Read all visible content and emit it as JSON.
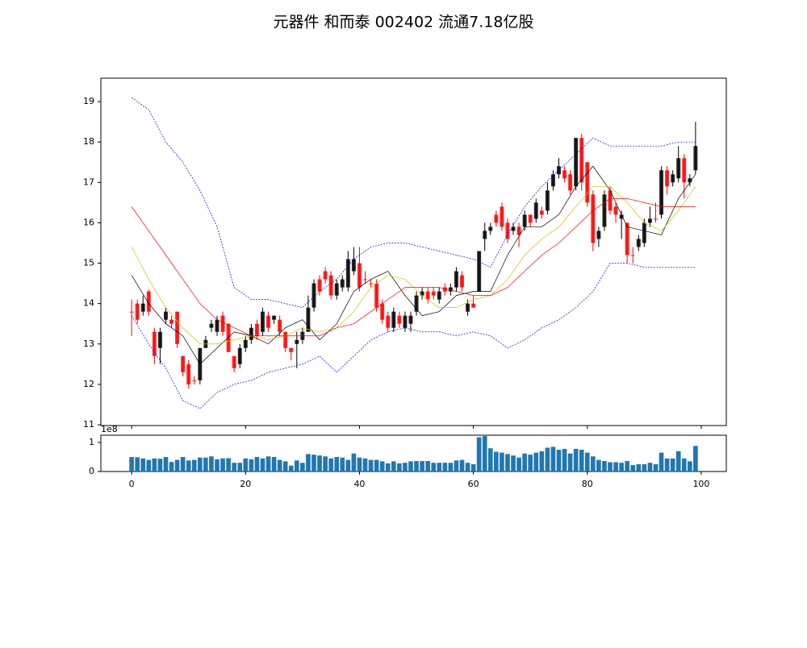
{
  "chart_data": [
    {
      "type": "candlestick",
      "title": "元器件 和而泰 002402 流通7.18亿股",
      "up_color": "#000000",
      "down_color": "#ff0000",
      "xlim": [
        -5.4,
        104.4
      ],
      "xticks": [
        0,
        20,
        40,
        60,
        80,
        100
      ],
      "ylim": [
        10.98,
        19.58
      ],
      "yticks": [
        11,
        12,
        13,
        14,
        15,
        16,
        17,
        18,
        19
      ],
      "open": [
        13.8,
        14.0,
        13.8,
        14.3,
        13.3,
        12.9,
        13.6,
        13.6,
        13.8,
        12.7,
        12.5,
        12.1,
        12.1,
        12.9,
        13.4,
        13.3,
        13.7,
        13.5,
        12.7,
        12.5,
        12.9,
        13.1,
        13.5,
        13.3,
        13.7,
        13.6,
        13.6,
        13.3,
        12.9,
        13.0,
        13.1,
        13.3,
        13.9,
        14.6,
        14.8,
        14.7,
        14.2,
        14.4,
        14.4,
        14.8,
        15.0,
        14.6,
        14.5,
        14.5,
        14.0,
        13.7,
        13.4,
        13.7,
        13.4,
        13.5,
        13.8,
        14.2,
        14.3,
        14.3,
        14.1,
        14.4,
        14.3,
        14.4,
        14.7,
        13.8,
        14.0,
        14.3,
        15.6,
        15.8,
        16.2,
        16.4,
        16.0,
        15.8,
        15.9,
        15.9,
        16.2,
        16.1,
        16.3,
        16.3,
        16.9,
        17.2,
        17.3,
        17.2,
        16.9,
        18.1,
        17.5,
        16.7,
        15.6,
        15.9,
        16.8,
        16.4,
        16.1,
        16.0,
        15.2,
        15.4,
        15.5,
        16.0,
        16.1,
        16.2,
        17.3,
        17.0,
        17.1,
        17.6,
        17.0,
        17.3
      ],
      "high": [
        14.1,
        14.1,
        14.2,
        14.35,
        13.4,
        13.4,
        13.9,
        13.7,
        13.8,
        12.7,
        12.6,
        12.2,
        12.9,
        13.2,
        13.6,
        13.7,
        13.8,
        13.5,
        12.7,
        13.0,
        13.2,
        13.5,
        13.6,
        13.9,
        13.8,
        13.7,
        13.7,
        13.3,
        12.9,
        13.3,
        13.4,
        14.2,
        14.6,
        14.7,
        14.9,
        14.8,
        14.6,
        14.7,
        15.3,
        15.4,
        15.4,
        14.8,
        14.6,
        14.6,
        14.1,
        13.8,
        13.9,
        13.8,
        13.8,
        13.8,
        14.3,
        14.4,
        14.4,
        14.4,
        14.4,
        14.5,
        14.5,
        14.9,
        14.8,
        14.1,
        14.2,
        15.3,
        16.0,
        16.0,
        16.3,
        16.5,
        16.1,
        16.0,
        16.0,
        16.3,
        16.2,
        16.6,
        16.4,
        17.0,
        17.3,
        17.6,
        17.4,
        17.3,
        18.1,
        18.2,
        17.5,
        16.8,
        15.9,
        16.8,
        16.9,
        16.5,
        16.3,
        16.0,
        15.4,
        15.7,
        16.1,
        16.4,
        16.5,
        17.4,
        17.4,
        17.3,
        17.9,
        17.7,
        17.2,
        18.5
      ],
      "low": [
        13.2,
        13.5,
        13.7,
        13.7,
        12.5,
        12.5,
        13.5,
        13.4,
        12.9,
        12.2,
        11.9,
        12.0,
        12.0,
        12.9,
        13.3,
        13.2,
        13.2,
        12.8,
        12.3,
        12.4,
        12.8,
        13.0,
        13.1,
        13.2,
        13.3,
        13.5,
        13.2,
        12.8,
        12.6,
        12.4,
        13.0,
        13.3,
        13.8,
        14.2,
        14.5,
        14.1,
        14.1,
        14.3,
        14.3,
        14.7,
        14.3,
        14.5,
        14.4,
        13.8,
        13.5,
        13.3,
        13.3,
        13.4,
        13.3,
        13.3,
        13.7,
        14.1,
        14.0,
        14.1,
        14.0,
        14.2,
        14.2,
        14.3,
        14.3,
        13.7,
        13.9,
        14.3,
        15.3,
        15.7,
        15.9,
        15.8,
        15.5,
        15.7,
        15.4,
        15.8,
        15.9,
        16.0,
        16.1,
        16.2,
        16.8,
        17.1,
        17.0,
        16.7,
        16.8,
        16.8,
        16.4,
        15.3,
        15.4,
        15.8,
        16.2,
        16.0,
        15.6,
        15.0,
        15.0,
        15.3,
        15.4,
        15.9,
        16.0,
        16.1,
        16.7,
        16.9,
        17.0,
        16.6,
        16.9,
        17.2
      ],
      "close": [
        13.8,
        13.6,
        14.0,
        13.8,
        12.7,
        13.3,
        13.8,
        13.5,
        13.0,
        12.3,
        12.0,
        12.1,
        12.9,
        13.1,
        13.5,
        13.6,
        13.3,
        12.8,
        12.4,
        12.9,
        13.1,
        13.4,
        13.2,
        13.8,
        13.4,
        13.7,
        13.3,
        12.9,
        12.8,
        13.1,
        13.3,
        13.9,
        14.5,
        14.3,
        14.6,
        14.2,
        14.5,
        14.6,
        15.1,
        15.1,
        14.4,
        14.6,
        14.5,
        13.9,
        13.6,
        13.4,
        13.8,
        13.5,
        13.7,
        13.7,
        14.2,
        14.3,
        14.1,
        14.2,
        14.3,
        14.3,
        14.4,
        14.8,
        14.4,
        14.0,
        13.9,
        15.3,
        15.8,
        15.9,
        16.0,
        15.9,
        15.6,
        15.9,
        15.7,
        16.2,
        16.0,
        16.5,
        16.2,
        16.8,
        17.2,
        17.4,
        17.1,
        16.8,
        18.1,
        17.0,
        16.5,
        15.5,
        15.8,
        16.7,
        16.3,
        16.2,
        16.2,
        15.2,
        15.2,
        15.6,
        16.0,
        16.1,
        16.1,
        17.3,
        16.9,
        17.2,
        17.6,
        17.0,
        17.1,
        17.9
      ],
      "series": [
        {
          "color": "#000000",
          "linestyle": "solid",
          "x": [
            0,
            3,
            6,
            9,
            12,
            15,
            18,
            21,
            24,
            27,
            30,
            33,
            36,
            39,
            42,
            45,
            48,
            51,
            54,
            57,
            60,
            63,
            66,
            69,
            72,
            75,
            78,
            81,
            84,
            87,
            90,
            93,
            96,
            99
          ],
          "values": [
            14.7,
            14.0,
            13.5,
            13.2,
            12.5,
            12.9,
            13.3,
            13.2,
            13.0,
            13.4,
            13.6,
            13.1,
            13.5,
            14.3,
            14.6,
            14.8,
            14.2,
            13.7,
            13.8,
            14.2,
            14.3,
            14.3,
            15.2,
            15.9,
            15.9,
            16.2,
            16.9,
            17.4,
            16.8,
            15.9,
            15.8,
            15.7,
            16.6,
            17.2
          ]
        },
        {
          "color": "#c8c800",
          "linestyle": "solid",
          "x": [
            0,
            3,
            6,
            9,
            12,
            15,
            18,
            21,
            24,
            27,
            30,
            33,
            36,
            39,
            42,
            45,
            48,
            51,
            54,
            57,
            60,
            63,
            66,
            69,
            72,
            75,
            78,
            81,
            84,
            87,
            90,
            93,
            96,
            99
          ],
          "values": [
            15.4,
            14.6,
            13.9,
            13.4,
            13.0,
            13.0,
            13.1,
            13.2,
            13.1,
            13.2,
            13.4,
            13.3,
            13.4,
            13.8,
            14.4,
            14.7,
            14.6,
            14.2,
            13.9,
            13.9,
            14.1,
            14.2,
            14.6,
            15.2,
            15.6,
            15.9,
            16.4,
            16.9,
            16.9,
            16.5,
            16.0,
            15.8,
            16.3,
            16.9
          ]
        },
        {
          "color": "#ff0000",
          "linestyle": "solid",
          "x": [
            0,
            3,
            6,
            9,
            12,
            15,
            18,
            21,
            24,
            27,
            30,
            33,
            36,
            39,
            42,
            45,
            48,
            51,
            54,
            57,
            60,
            63,
            66,
            69,
            72,
            75,
            78,
            81,
            84,
            87,
            90,
            93,
            96,
            99
          ],
          "values": [
            16.4,
            15.8,
            15.2,
            14.6,
            14.0,
            13.6,
            13.4,
            13.2,
            13.2,
            13.2,
            13.2,
            13.2,
            13.4,
            13.5,
            13.8,
            14.1,
            14.4,
            14.4,
            14.4,
            14.3,
            14.2,
            14.2,
            14.4,
            14.8,
            15.2,
            15.5,
            15.9,
            16.3,
            16.6,
            16.6,
            16.5,
            16.4,
            16.4,
            16.4
          ]
        },
        {
          "color": "#0000ff",
          "linestyle": "dashed",
          "x": [
            0,
            3,
            6,
            9,
            12,
            15,
            18,
            21,
            24,
            27,
            30,
            33,
            36,
            39,
            42,
            45,
            48,
            51,
            54,
            57,
            60,
            63,
            66,
            69,
            72,
            75,
            78,
            81,
            84,
            87,
            90,
            93,
            96,
            99
          ],
          "values": [
            19.1,
            18.8,
            18.0,
            17.5,
            16.8,
            15.9,
            14.4,
            14.1,
            14.1,
            14.0,
            13.9,
            14.3,
            14.6,
            15.1,
            15.4,
            15.5,
            15.5,
            15.4,
            15.3,
            15.2,
            15.1,
            14.9,
            15.7,
            16.4,
            16.9,
            17.3,
            17.7,
            18.1,
            17.9,
            17.9,
            17.9,
            17.9,
            18.0,
            18.0
          ]
        },
        {
          "color": "#0000ff",
          "linestyle": "dashed",
          "x": [
            0,
            3,
            6,
            9,
            12,
            15,
            18,
            21,
            24,
            27,
            30,
            33,
            36,
            39,
            42,
            45,
            48,
            51,
            54,
            57,
            60,
            63,
            66,
            69,
            72,
            75,
            78,
            81,
            84,
            87,
            90,
            93,
            96,
            99
          ],
          "values": [
            13.7,
            13.0,
            12.4,
            11.6,
            11.4,
            11.8,
            12.0,
            12.1,
            12.3,
            12.4,
            12.5,
            12.7,
            12.3,
            12.7,
            13.1,
            13.3,
            13.4,
            13.3,
            13.3,
            13.2,
            13.3,
            13.2,
            12.9,
            13.1,
            13.4,
            13.6,
            13.9,
            14.3,
            15.0,
            15.0,
            14.9,
            14.9,
            14.9,
            14.9
          ]
        }
      ]
    },
    {
      "type": "bar",
      "color": "#1f77b4",
      "offset_text": "1e8",
      "xlim": [
        -5.4,
        104.4
      ],
      "xticks": [
        0,
        20,
        40,
        60,
        80,
        100
      ],
      "ylim": [
        0,
        1.25
      ],
      "yticks": [
        0,
        1
      ],
      "values": [
        0.5,
        0.49,
        0.45,
        0.4,
        0.45,
        0.44,
        0.5,
        0.33,
        0.4,
        0.5,
        0.38,
        0.4,
        0.48,
        0.48,
        0.52,
        0.42,
        0.45,
        0.46,
        0.3,
        0.3,
        0.45,
        0.42,
        0.5,
        0.45,
        0.52,
        0.5,
        0.4,
        0.35,
        0.2,
        0.38,
        0.3,
        0.6,
        0.58,
        0.55,
        0.52,
        0.45,
        0.5,
        0.48,
        0.4,
        0.62,
        0.48,
        0.45,
        0.4,
        0.4,
        0.35,
        0.28,
        0.35,
        0.28,
        0.3,
        0.35,
        0.36,
        0.36,
        0.36,
        0.3,
        0.3,
        0.3,
        0.3,
        0.38,
        0.4,
        0.3,
        0.25,
        1.18,
        1.22,
        0.8,
        0.68,
        0.65,
        0.6,
        0.55,
        0.48,
        0.62,
        0.58,
        0.65,
        0.7,
        0.82,
        0.85,
        0.75,
        0.78,
        0.62,
        0.78,
        0.75,
        0.65,
        0.52,
        0.4,
        0.36,
        0.32,
        0.32,
        0.3,
        0.36,
        0.22,
        0.25,
        0.25,
        0.3,
        0.25,
        0.65,
        0.45,
        0.45,
        0.7,
        0.45,
        0.35,
        0.88
      ]
    }
  ]
}
